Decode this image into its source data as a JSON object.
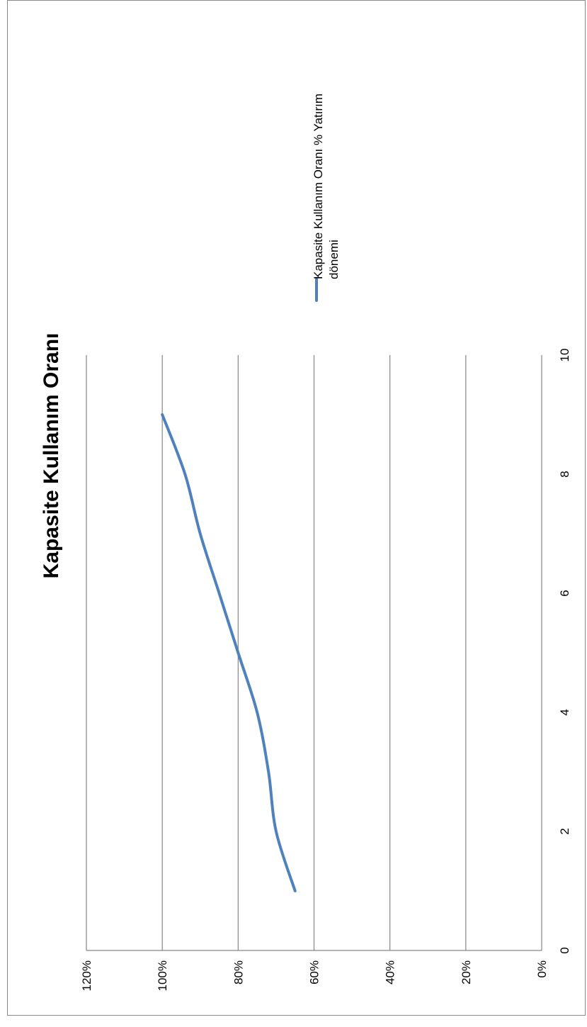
{
  "chart_data": {
    "type": "line",
    "title": "Kapasite Kullanım Oranı",
    "xlabel": "",
    "ylabel": "",
    "xlim": [
      0,
      10
    ],
    "ylim": [
      0,
      1.2
    ],
    "x_ticks": [
      "0",
      "2",
      "4",
      "6",
      "8",
      "10"
    ],
    "y_ticks": [
      "0%",
      "20%",
      "40%",
      "60%",
      "80%",
      "100%",
      "120%"
    ],
    "grid": true,
    "legend_position": "right",
    "series": [
      {
        "name": "Kapasite Kullanım Oranı %  Yatırım dönemi",
        "name_lines": [
          "Kapasite Kullanım Oranı %  Yatırım",
          "dönemi"
        ],
        "color": "#4F81BD",
        "x": [
          1,
          2,
          3,
          4,
          5,
          6,
          7,
          8,
          9
        ],
        "y": [
          0.65,
          0.7,
          0.72,
          0.75,
          0.8,
          0.85,
          0.9,
          0.94,
          1.0
        ]
      }
    ]
  }
}
